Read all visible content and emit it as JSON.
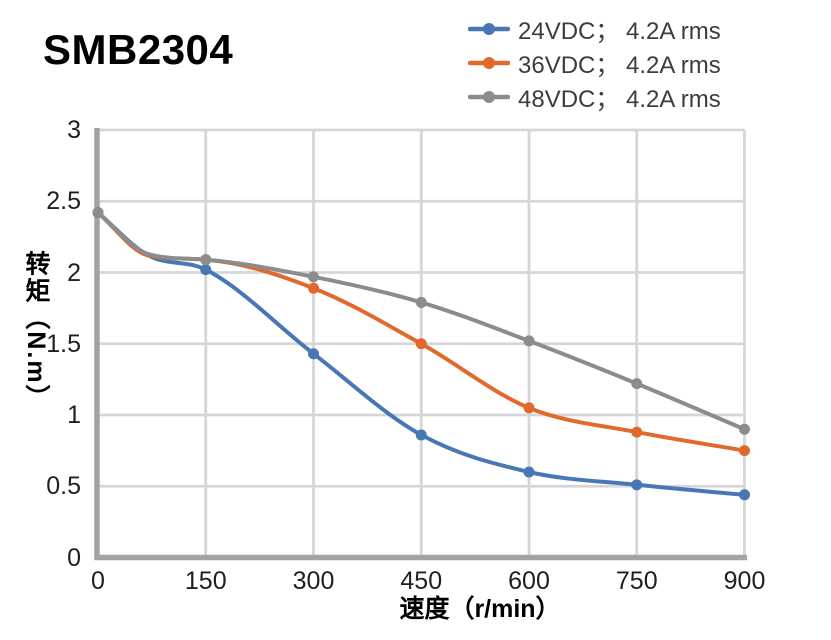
{
  "title": "SMB2304",
  "chart_data": {
    "type": "line",
    "title": "SMB2304",
    "x": [
      0,
      150,
      300,
      450,
      600,
      750,
      900
    ],
    "series": [
      {
        "name": "24VDC； 4.2A rms",
        "color": "#4878B4",
        "values": [
          2.42,
          2.02,
          1.43,
          0.86,
          0.6,
          0.51,
          0.44
        ]
      },
      {
        "name": "36VDC； 4.2A rms",
        "color": "#E2692D",
        "values": [
          2.42,
          2.09,
          1.89,
          1.5,
          1.05,
          0.88,
          0.75
        ]
      },
      {
        "name": "48VDC； 4.2A rms",
        "color": "#8C8C8C",
        "values": [
          2.42,
          2.09,
          1.97,
          1.79,
          1.52,
          1.22,
          0.9
        ]
      }
    ],
    "curve_knee": {
      "x": 70,
      "values": [
        2.12,
        2.12,
        2.13
      ]
    },
    "xlabel": "速度（r/min）",
    "ylabel": "转矩（N.m）",
    "xlim": [
      0,
      900
    ],
    "ylim": [
      0,
      3
    ],
    "xticks": [
      0,
      150,
      300,
      450,
      600,
      750,
      900
    ],
    "yticks": [
      0,
      0.5,
      1,
      1.5,
      2,
      2.5,
      3
    ],
    "grid": true,
    "legend_position": "top-right",
    "marker": "circle",
    "axis_color": "#A3A3A6",
    "grid_color": "#D6D6D9"
  }
}
